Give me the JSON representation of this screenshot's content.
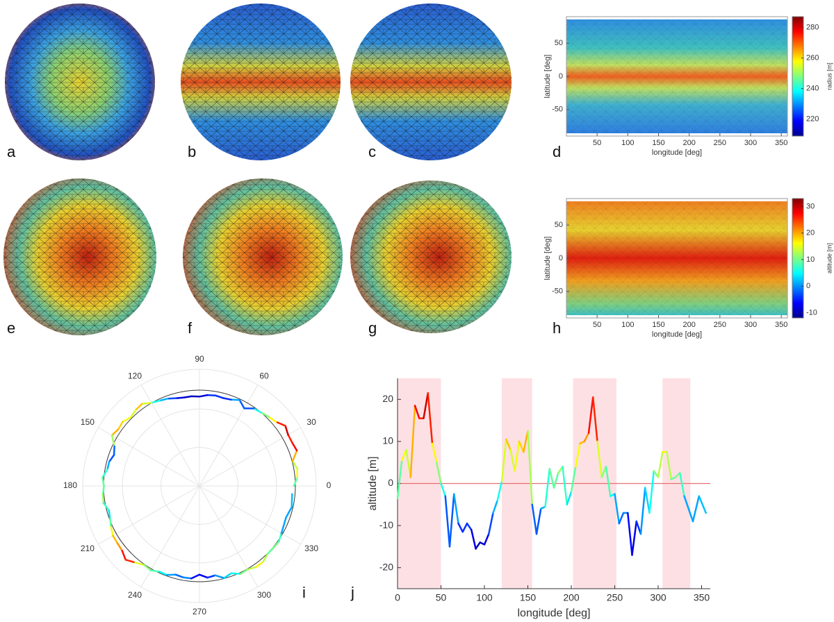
{
  "panel_labels": [
    "a",
    "b",
    "c",
    "d",
    "e",
    "f",
    "g",
    "h",
    "i",
    "j"
  ],
  "chart_data": [
    {
      "type": "map",
      "xlabel": "longitude [deg]",
      "ylabel": "latitude [deg]",
      "xlim": [
        0,
        360
      ],
      "xticks": [
        50,
        100,
        150,
        200,
        250,
        300,
        350
      ],
      "ylim": [
        -90,
        90
      ],
      "yticks": [
        -50,
        0,
        50
      ],
      "colorbar_label": "radius [m]",
      "colormap": "jet",
      "clim": [
        209,
        287
      ],
      "cticks": [
        220,
        240,
        260,
        280
      ]
    },
    {
      "type": "map",
      "xlabel": "longitude [deg]",
      "ylabel": "latitude [deg]",
      "xlim": [
        0,
        360
      ],
      "xticks": [
        50,
        100,
        150,
        200,
        250,
        300,
        350
      ],
      "ylim": [
        -90,
        90
      ],
      "yticks": [
        -50,
        0,
        50
      ],
      "colorbar_label": "altitude [m]",
      "colormap": "jet",
      "clim": [
        -12,
        33
      ],
      "cticks": [
        -10,
        0,
        10,
        20,
        30
      ]
    },
    {
      "type": "polar",
      "theta_ticks": [
        0,
        30,
        60,
        90,
        120,
        150,
        180,
        210,
        240,
        270,
        300,
        330
      ],
      "source": "profile"
    },
    {
      "type": "line",
      "xlabel": "longitude [deg]",
      "ylabel": "altitude [m]",
      "xlim": [
        0,
        360
      ],
      "xticks": [
        0,
        50,
        100,
        150,
        200,
        250,
        300,
        350
      ],
      "ylim": [
        -25,
        25
      ],
      "yticks": [
        -20,
        -10,
        0,
        10,
        20
      ],
      "hline": 0,
      "hline_color": "#e87070",
      "shade_color": "#fde0e4",
      "shaded_ranges": [
        [
          0,
          50
        ],
        [
          120,
          155
        ],
        [
          202,
          252
        ],
        [
          305,
          337
        ]
      ],
      "colormap": "jet",
      "x": [
        0,
        5,
        10,
        15,
        20,
        25,
        30,
        35,
        40,
        45,
        50,
        55,
        60,
        65,
        70,
        75,
        80,
        85,
        90,
        95,
        100,
        105,
        110,
        115,
        120,
        125,
        130,
        135,
        140,
        145,
        150,
        155,
        160,
        165,
        170,
        175,
        180,
        185,
        190,
        195,
        200,
        205,
        210,
        215,
        220,
        225,
        230,
        235,
        240,
        245,
        250,
        255,
        260,
        265,
        270,
        275,
        280,
        285,
        290,
        295,
        300,
        305,
        310,
        315,
        320,
        325,
        330,
        340,
        347,
        355
      ],
      "values": [
        -3.5,
        5.5,
        8,
        1.5,
        18.5,
        15.5,
        15.5,
        21.5,
        9.5,
        5,
        0,
        -3,
        -15,
        -2.5,
        -9.5,
        -11.5,
        -9.5,
        -11,
        -15.5,
        -14,
        -14.5,
        -12,
        -7,
        -4,
        0.5,
        10.5,
        8,
        3,
        10,
        7.5,
        12.5,
        -5,
        -12,
        -6,
        -5.5,
        3.5,
        -1,
        2.5,
        4,
        -5,
        -2,
        4,
        9.5,
        10,
        12,
        20.5,
        10,
        1.5,
        4,
        -3,
        -2.5,
        -9.5,
        -7,
        -7,
        -17,
        -9,
        -12,
        -1,
        -7,
        3,
        1.5,
        7.5,
        7.5,
        1,
        1.5,
        2.5,
        -3,
        -9,
        -3,
        -7
      ]
    }
  ]
}
